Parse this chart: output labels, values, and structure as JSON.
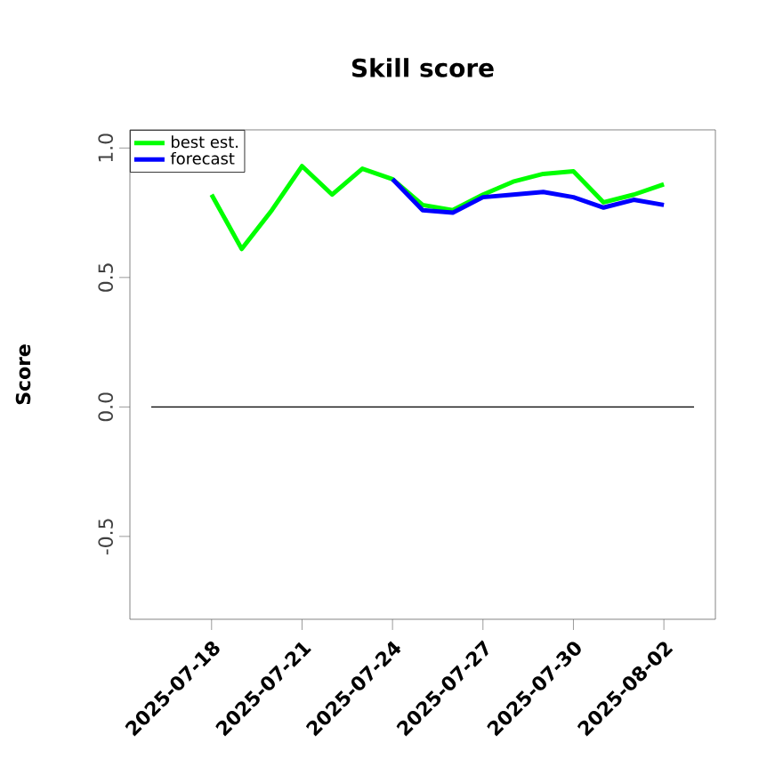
{
  "chart_data": {
    "type": "line",
    "title": "Skill score",
    "ylabel": "Score",
    "x": [
      "2025-07-18",
      "2025-07-19",
      "2025-07-20",
      "2025-07-21",
      "2025-07-22",
      "2025-07-23",
      "2025-07-24",
      "2025-07-25",
      "2025-07-26",
      "2025-07-27",
      "2025-07-28",
      "2025-07-29",
      "2025-07-30",
      "2025-07-31",
      "2025-08-01",
      "2025-08-02"
    ],
    "series": [
      {
        "name": "best est.",
        "color": "#00ff00",
        "values": [
          0.82,
          0.61,
          0.76,
          0.93,
          0.82,
          0.92,
          0.88,
          0.78,
          0.76,
          0.82,
          0.87,
          0.9,
          0.91,
          0.79,
          0.82,
          0.86
        ]
      },
      {
        "name": "forecast",
        "color": "#0000ff",
        "values": [
          null,
          null,
          null,
          null,
          null,
          null,
          0.88,
          0.76,
          0.75,
          0.81,
          0.82,
          0.83,
          0.81,
          0.77,
          0.8,
          0.78
        ]
      },
      {
        "color": "#000000",
        "x": [
          "2025-07-16",
          "2025-08-03"
        ],
        "values": [
          0,
          0
        ]
      }
    ],
    "xlim": [
      "2025-07-15T07:00",
      "2025-08-03T17:00"
    ],
    "xticks": [
      "2025-07-18",
      "2025-07-21",
      "2025-07-24",
      "2025-07-27",
      "2025-07-30",
      "2025-08-02"
    ],
    "ylim": [
      -0.82,
      1.07
    ],
    "yticks": [
      -0.5,
      {
        "value": 0,
        "label": "0.0"
      },
      0.5,
      {
        "value": 1,
        "label": "1.0"
      }
    ],
    "legend": "top left",
    "marker": "none",
    "line_style": "solid",
    "grid": false
  }
}
